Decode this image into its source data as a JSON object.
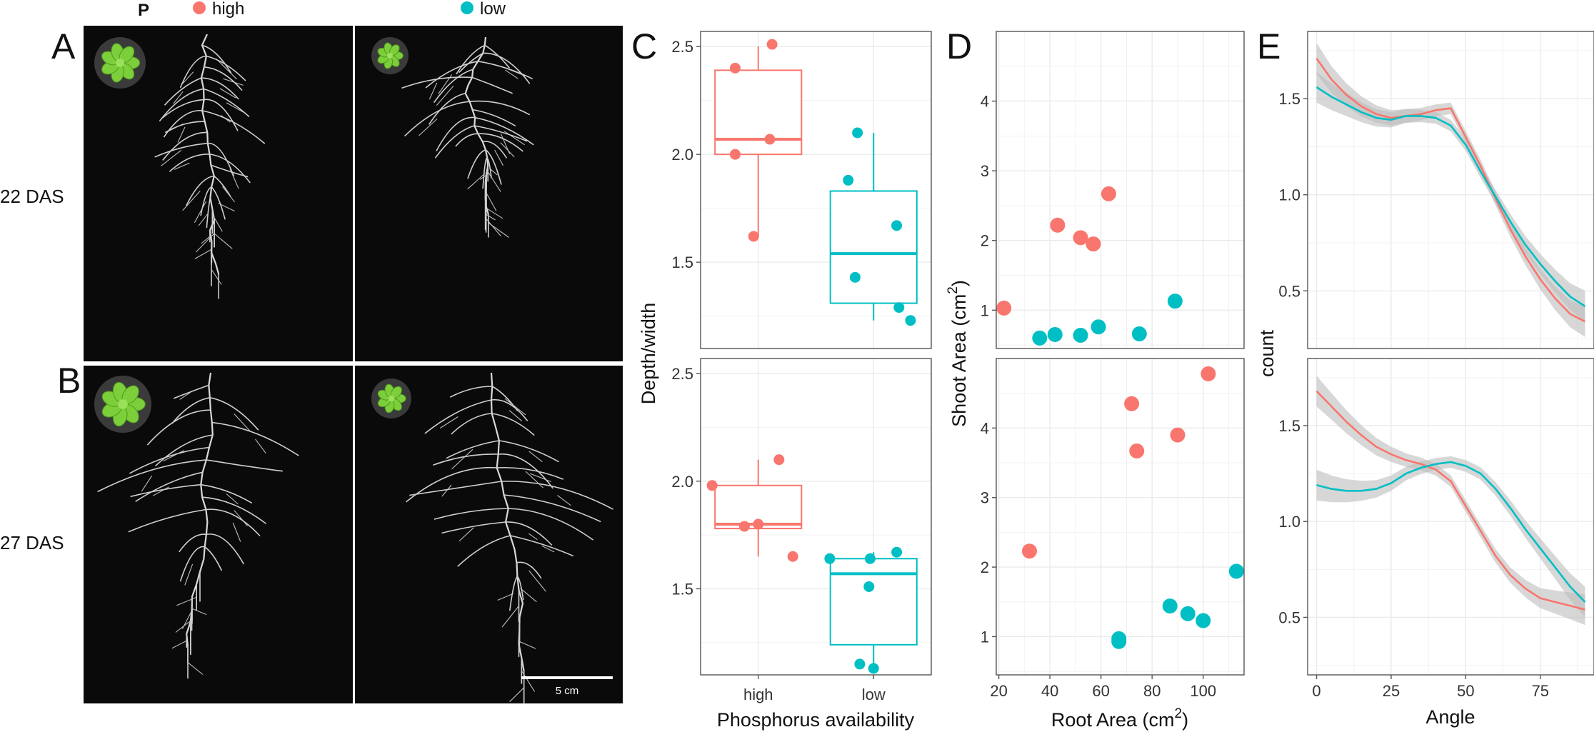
{
  "colors": {
    "high": "#F8766D",
    "low": "#00BFC4",
    "grid": "#EBEBEB",
    "panel_border": "#555555",
    "band": "#BDBDBD"
  },
  "legend": {
    "title": "P",
    "items": [
      {
        "label": "high",
        "color": "#F8766D"
      },
      {
        "label": "low",
        "color": "#00BFC4"
      }
    ]
  },
  "panels": {
    "A": {
      "letter": "A",
      "row_label": "22 DAS"
    },
    "B": {
      "letter": "B",
      "row_label": "27 DAS"
    },
    "C": {
      "letter": "C"
    },
    "D": {
      "letter": "D"
    },
    "E": {
      "letter": "E"
    }
  },
  "scale_bar": {
    "label": "5 cm"
  },
  "chart_data": [
    {
      "id": "C",
      "type": "box",
      "xlabel": "Phosphorus availability",
      "ylabel": "Depth/width",
      "categories": [
        "high",
        "low"
      ],
      "ylim": [
        1.1,
        2.57
      ],
      "yticks": [
        1.5,
        2.0,
        2.5
      ],
      "facets": [
        {
          "name": "22 DAS",
          "groups": [
            {
              "category": "high",
              "box": {
                "min": 1.62,
                "q1": 2.0,
                "median": 2.07,
                "q3": 2.39,
                "max": 2.5
              },
              "points": [
                {
                  "x": 0.96,
                  "y": 1.62
                },
                {
                  "x": 0.8,
                  "y": 2.0
                },
                {
                  "x": 1.1,
                  "y": 2.07
                },
                {
                  "x": 0.8,
                  "y": 2.4
                },
                {
                  "x": 1.12,
                  "y": 2.51
                }
              ]
            },
            {
              "category": "low",
              "box": {
                "min": 1.23,
                "q1": 1.31,
                "median": 1.54,
                "q3": 1.83,
                "max": 2.1
              },
              "points": [
                {
                  "x": 1.84,
                  "y": 1.43
                },
                {
                  "x": 1.86,
                  "y": 2.1
                },
                {
                  "x": 1.78,
                  "y": 1.88
                },
                {
                  "x": 2.2,
                  "y": 1.67
                },
                {
                  "x": 2.22,
                  "y": 1.29
                },
                {
                  "x": 2.32,
                  "y": 1.23
                }
              ]
            }
          ]
        },
        {
          "name": "27 DAS",
          "groups": [
            {
              "category": "high",
              "box": {
                "min": 1.65,
                "q1": 1.78,
                "median": 1.8,
                "q3": 1.98,
                "max": 2.1
              },
              "points": [
                {
                  "x": 0.6,
                  "y": 1.98
                },
                {
                  "x": 0.88,
                  "y": 1.79
                },
                {
                  "x": 1.0,
                  "y": 1.8
                },
                {
                  "x": 1.18,
                  "y": 2.1
                },
                {
                  "x": 1.3,
                  "y": 1.65
                }
              ]
            },
            {
              "category": "low",
              "box": {
                "min": 1.12,
                "q1": 1.24,
                "median": 1.57,
                "q3": 1.64,
                "max": 1.67
              },
              "points": [
                {
                  "x": 1.62,
                  "y": 1.64
                },
                {
                  "x": 1.88,
                  "y": 1.15
                },
                {
                  "x": 2.0,
                  "y": 1.13
                },
                {
                  "x": 1.96,
                  "y": 1.51
                },
                {
                  "x": 1.97,
                  "y": 1.64
                },
                {
                  "x": 2.2,
                  "y": 1.67
                }
              ]
            }
          ]
        }
      ]
    },
    {
      "id": "D",
      "type": "scatter",
      "xlabel": "Root Area (cm",
      "xlabel_sup": "2",
      "xlabel_end": ")",
      "ylabel": "Shoot Area (cm",
      "ylabel_sup": "2",
      "ylabel_end": ")",
      "xlim": [
        19,
        116
      ],
      "xticks": [
        20,
        40,
        60,
        80,
        100
      ],
      "ylim": [
        0.45,
        5
      ],
      "yticks": [
        1,
        2,
        3,
        4
      ],
      "facets": [
        {
          "name": "22 DAS",
          "series": [
            {
              "name": "high",
              "points": [
                [
                  22,
                  1.03
                ],
                [
                  43,
                  2.22
                ],
                [
                  52,
                  2.04
                ],
                [
                  57,
                  1.95
                ],
                [
                  63,
                  2.67
                ]
              ]
            },
            {
              "name": "low",
              "points": [
                [
                  36,
                  0.6
                ],
                [
                  42,
                  0.65
                ],
                [
                  52,
                  0.64
                ],
                [
                  59,
                  0.76
                ],
                [
                  75,
                  0.66
                ],
                [
                  89,
                  1.13
                ]
              ]
            }
          ]
        },
        {
          "name": "27 DAS",
          "series": [
            {
              "name": "high",
              "points": [
                [
                  32,
                  2.23
                ],
                [
                  72,
                  4.35
                ],
                [
                  74,
                  3.67
                ],
                [
                  90,
                  3.9
                ],
                [
                  102,
                  4.78
                ]
              ]
            },
            {
              "name": "low",
              "points": [
                [
                  67,
                  0.97
                ],
                [
                  67,
                  0.93
                ],
                [
                  87,
                  1.44
                ],
                [
                  94,
                  1.33
                ],
                [
                  100,
                  1.23
                ],
                [
                  113,
                  1.94
                ]
              ]
            }
          ]
        }
      ]
    },
    {
      "id": "E",
      "type": "line",
      "xlabel": "Angle",
      "ylabel": "count",
      "xlim": [
        -3,
        93
      ],
      "xticks": [
        0,
        25,
        50,
        75
      ],
      "ylim": [
        0.2,
        1.85
      ],
      "yticks": [
        0.5,
        1.0,
        1.5
      ],
      "facets": [
        {
          "name": "22 DAS",
          "series": [
            {
              "name": "high",
              "points": [
                [
                  0,
                  1.71
                ],
                [
                  5,
                  1.6
                ],
                [
                  10,
                  1.52
                ],
                [
                  15,
                  1.46
                ],
                [
                  20,
                  1.42
                ],
                [
                  25,
                  1.4
                ],
                [
                  30,
                  1.41
                ],
                [
                  35,
                  1.42
                ],
                [
                  40,
                  1.44
                ],
                [
                  45,
                  1.45
                ],
                [
                  50,
                  1.3
                ],
                [
                  55,
                  1.15
                ],
                [
                  60,
                  0.98
                ],
                [
                  65,
                  0.82
                ],
                [
                  70,
                  0.68
                ],
                [
                  75,
                  0.56
                ],
                [
                  80,
                  0.46
                ],
                [
                  85,
                  0.38
                ],
                [
                  90,
                  0.34
                ]
              ]
            },
            {
              "name": "low",
              "points": [
                [
                  0,
                  1.56
                ],
                [
                  5,
                  1.51
                ],
                [
                  10,
                  1.47
                ],
                [
                  15,
                  1.43
                ],
                [
                  20,
                  1.4
                ],
                [
                  25,
                  1.39
                ],
                [
                  30,
                  1.41
                ],
                [
                  35,
                  1.41
                ],
                [
                  40,
                  1.4
                ],
                [
                  45,
                  1.36
                ],
                [
                  50,
                  1.26
                ],
                [
                  55,
                  1.12
                ],
                [
                  60,
                  0.99
                ],
                [
                  65,
                  0.86
                ],
                [
                  70,
                  0.74
                ],
                [
                  75,
                  0.64
                ],
                [
                  80,
                  0.55
                ],
                [
                  85,
                  0.47
                ],
                [
                  90,
                  0.42
                ]
              ]
            }
          ]
        },
        {
          "name": "27 DAS",
          "series": [
            {
              "name": "high",
              "points": [
                [
                  0,
                  1.68
                ],
                [
                  5,
                  1.6
                ],
                [
                  10,
                  1.52
                ],
                [
                  15,
                  1.45
                ],
                [
                  20,
                  1.39
                ],
                [
                  25,
                  1.35
                ],
                [
                  30,
                  1.32
                ],
                [
                  35,
                  1.3
                ],
                [
                  40,
                  1.27
                ],
                [
                  45,
                  1.21
                ],
                [
                  50,
                  1.08
                ],
                [
                  55,
                  0.95
                ],
                [
                  60,
                  0.82
                ],
                [
                  65,
                  0.72
                ],
                [
                  70,
                  0.65
                ],
                [
                  75,
                  0.6
                ],
                [
                  80,
                  0.58
                ],
                [
                  85,
                  0.56
                ],
                [
                  90,
                  0.54
                ]
              ]
            },
            {
              "name": "low",
              "points": [
                [
                  0,
                  1.19
                ],
                [
                  5,
                  1.17
                ],
                [
                  10,
                  1.16
                ],
                [
                  15,
                  1.16
                ],
                [
                  20,
                  1.17
                ],
                [
                  25,
                  1.2
                ],
                [
                  30,
                  1.25
                ],
                [
                  35,
                  1.28
                ],
                [
                  40,
                  1.3
                ],
                [
                  45,
                  1.31
                ],
                [
                  50,
                  1.29
                ],
                [
                  55,
                  1.25
                ],
                [
                  60,
                  1.17
                ],
                [
                  65,
                  1.07
                ],
                [
                  70,
                  0.96
                ],
                [
                  75,
                  0.86
                ],
                [
                  80,
                  0.76
                ],
                [
                  85,
                  0.66
                ],
                [
                  90,
                  0.58
                ]
              ]
            }
          ]
        }
      ]
    }
  ]
}
